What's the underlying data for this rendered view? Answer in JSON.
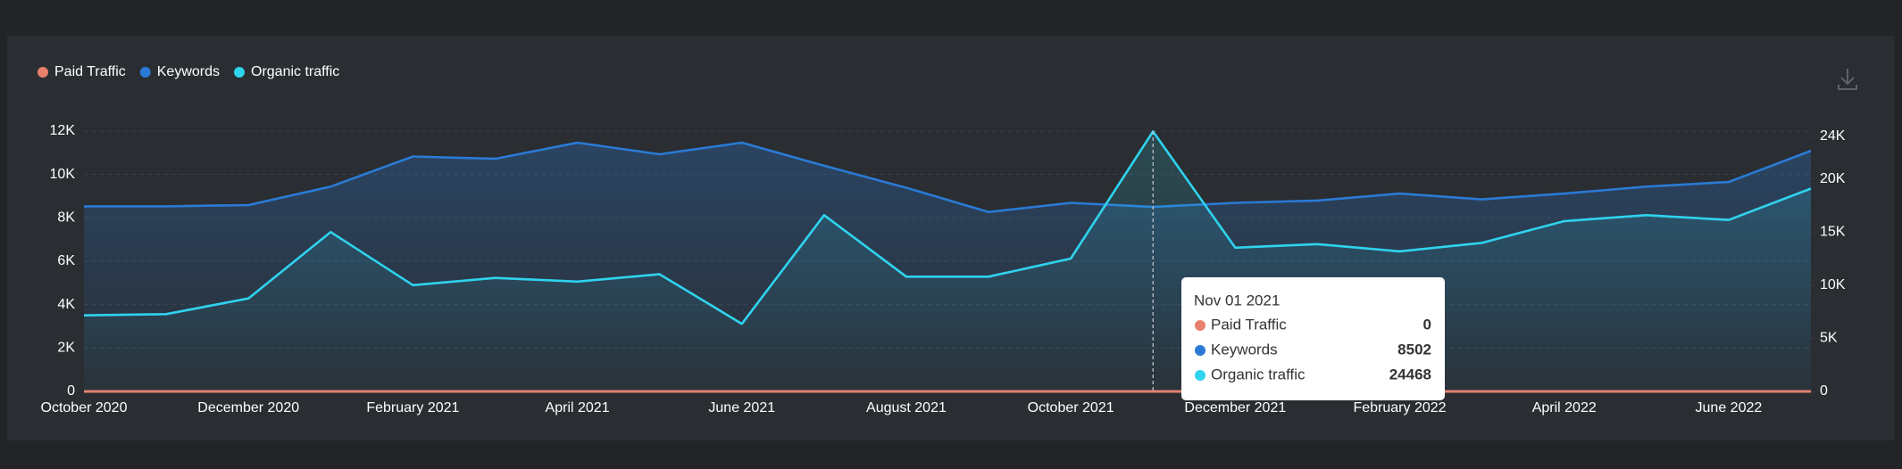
{
  "chart_data": {
    "type": "line",
    "categories": [
      "October 2020",
      null,
      "December 2020",
      null,
      "February 2021",
      null,
      "April 2021",
      null,
      "June 2021",
      null,
      "August 2021",
      null,
      "October 2021",
      null,
      "December 2021",
      null,
      "February 2022",
      null,
      "April 2022",
      null,
      "June 2022",
      null
    ],
    "series": [
      {
        "name": "Paid Traffic",
        "color": "#e8806e",
        "axis": "y",
        "values": [
          0,
          0,
          0,
          0,
          0,
          0,
          0,
          0,
          0,
          0,
          0,
          0,
          0,
          0,
          0,
          0,
          0,
          0,
          0,
          0,
          0,
          0
        ]
      },
      {
        "name": "Keywords",
        "color": "#2a7ad5",
        "axis": "y",
        "values": [
          8533,
          8533,
          8587,
          9440,
          10827,
          10720,
          11467,
          10933,
          11467,
          10400,
          9387,
          8267,
          8693,
          8502,
          8693,
          8800,
          9120,
          8853,
          9120,
          9440,
          9653,
          11093
        ]
      },
      {
        "name": "Organic traffic",
        "color": "#2fd3ee",
        "axis": "y2",
        "values": [
          7159,
          7273,
          8750,
          15000,
          10000,
          10682,
          10341,
          11023,
          6364,
          16591,
          10795,
          10795,
          12500,
          24468,
          13523,
          13864,
          13182,
          13977,
          16023,
          16591,
          16136,
          19091
        ]
      }
    ],
    "ylim": [
      0,
      12000
    ],
    "yticks": [
      0,
      {
        "value": 2000,
        "label": "2K"
      },
      {
        "value": 4000,
        "label": "4K"
      },
      {
        "value": 6000,
        "label": "6K"
      },
      {
        "value": 8000,
        "label": "8K"
      },
      {
        "value": 10000,
        "label": "10K"
      },
      {
        "value": 12000,
        "label": "12K"
      }
    ],
    "y2lim": [
      0,
      24500
    ],
    "y2ticks": [
      0,
      {
        "value": 5000,
        "label": "5K"
      },
      {
        "value": 10000,
        "label": "10K"
      },
      {
        "value": 15000,
        "label": "15K"
      },
      {
        "value": 20000,
        "label": "20K"
      },
      {
        "value": 24000,
        "label": "24K"
      }
    ],
    "grid": true,
    "legend": "top-left",
    "tooltip": {
      "index": 13,
      "date": "Nov 01 2021",
      "rows": [
        {
          "name": "Paid Traffic",
          "value": 0
        },
        {
          "name": "Keywords",
          "value": 8502
        },
        {
          "name": "Organic traffic",
          "value": 24468
        }
      ]
    }
  }
}
